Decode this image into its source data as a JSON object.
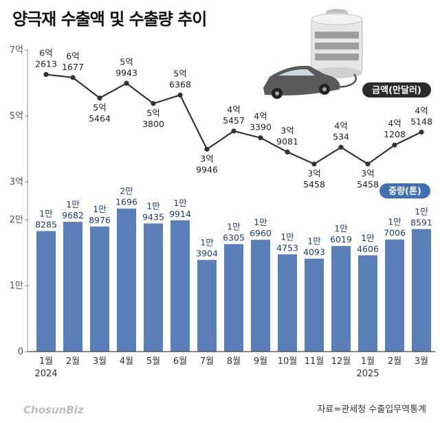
{
  "title": "양극재 수출액 및 수출량 추이",
  "source": "자료=관세청 수출입무역통계",
  "brand": "ChosunBiz",
  "colors": {
    "bar": "#5b7fb9",
    "line": "#333333",
    "value_label": "#1f3b73",
    "pill_amount": "#2b2b2b",
    "pill_volume": "#3f6fb5"
  },
  "chart_data": [
    {
      "type": "line",
      "name": "금액(만달러)",
      "legend_label": "금액(만달러)",
      "legend_position": "right",
      "x": [
        "1월",
        "2월",
        "3월",
        "4월",
        "5월",
        "6월",
        "7월",
        "8월",
        "9월",
        "10월",
        "11월",
        "12월",
        "1월",
        "2월",
        "3월"
      ],
      "values": [
        62613,
        61677,
        55464,
        59943,
        53800,
        56368,
        39946,
        45457,
        43390,
        39081,
        35458,
        40534,
        35458,
        41208,
        45148
      ],
      "labels": [
        [
          "6억",
          "2613"
        ],
        [
          "6억",
          "1677"
        ],
        [
          "5억",
          "5464"
        ],
        [
          "5억",
          "9943"
        ],
        [
          "5억",
          "3800"
        ],
        [
          "5억",
          "6368"
        ],
        [
          "3억",
          "9946"
        ],
        [
          "4억",
          "5457"
        ],
        [
          "4억",
          "3390"
        ],
        [
          "3억",
          "9081"
        ],
        [
          "3억",
          "5458"
        ],
        [
          "4억",
          "534"
        ],
        [
          "3억",
          "5458"
        ],
        [
          "4억",
          "1208"
        ],
        [
          "4억",
          "5148"
        ]
      ],
      "ylim": [
        30000,
        70000
      ],
      "yticks": [
        {
          "v": 30000,
          "label": "3억"
        },
        {
          "v": 50000,
          "label": "5억"
        },
        {
          "v": 70000,
          "label": "7억"
        }
      ]
    },
    {
      "type": "bar",
      "name": "중량(톤)",
      "legend_label": "중량(톤)",
      "legend_position": "right",
      "categories": [
        "1월",
        "2월",
        "3월",
        "4월",
        "5월",
        "6월",
        "7월",
        "8월",
        "9월",
        "10월",
        "11월",
        "12월",
        "1월",
        "2월",
        "3월"
      ],
      "values": [
        18285,
        19682,
        18976,
        21696,
        19435,
        19914,
        13904,
        16305,
        16960,
        14753,
        14093,
        16019,
        14606,
        17006,
        18591
      ],
      "labels": [
        [
          "1만",
          "8285"
        ],
        [
          "1만",
          "9682"
        ],
        [
          "1만",
          "8976"
        ],
        [
          "2만",
          "1696"
        ],
        [
          "1만",
          "9435"
        ],
        [
          "1만",
          "9914"
        ],
        [
          "1만",
          "3904"
        ],
        [
          "1만",
          "6305"
        ],
        [
          "1만",
          "6960"
        ],
        [
          "1만",
          "4753"
        ],
        [
          "1만",
          "4093"
        ],
        [
          "1만",
          "6019"
        ],
        [
          "1만",
          "4606"
        ],
        [
          "1만",
          "7006"
        ],
        [
          "1만",
          "8591"
        ]
      ],
      "ylim": [
        0,
        20000
      ],
      "yticks": [
        {
          "v": 0,
          "label": "0"
        },
        {
          "v": 10000,
          "label": "1만"
        },
        {
          "v": 20000,
          "label": "2만"
        }
      ],
      "year_labels": [
        {
          "index": 0,
          "label": "2024"
        },
        {
          "index": 12,
          "label": "2025"
        }
      ]
    }
  ]
}
